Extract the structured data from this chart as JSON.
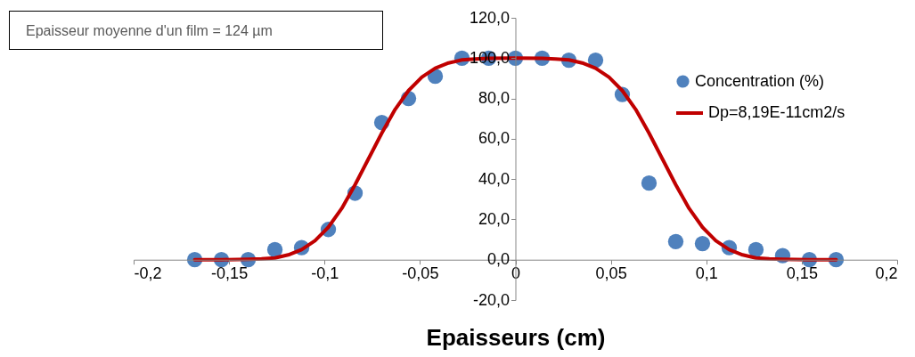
{
  "chart_data": {
    "type": "scatter",
    "xlabel": "Epaisseurs (cm)",
    "annotations": [
      "Epaisseur moyenne d'un film = 124 µm"
    ],
    "xlim": [
      -0.2,
      0.2
    ],
    "xticks": [
      {
        "value": -0.2,
        "label": "-0,2"
      },
      {
        "value": -0.15,
        "label": "-0,15"
      },
      {
        "value": -0.1,
        "label": "-0,1"
      },
      {
        "value": -0.05,
        "label": "-0,05"
      },
      0,
      {
        "value": 0.05,
        "label": "0,05"
      },
      {
        "value": 0.1,
        "label": "0,1"
      },
      {
        "value": 0.15,
        "label": "0,15"
      },
      {
        "value": 0.2,
        "label": "0,2"
      }
    ],
    "ylim": [
      -20,
      120
    ],
    "yticks": [
      {
        "value": -20,
        "label": "-20,0"
      },
      {
        "value": 0,
        "label": "0,0"
      },
      {
        "value": 20,
        "label": "20,0"
      },
      {
        "value": 40,
        "label": "40,0"
      },
      {
        "value": 60,
        "label": "60,0"
      },
      {
        "value": 80,
        "label": "80,0"
      },
      {
        "value": 100,
        "label": "100,0"
      },
      {
        "value": 120,
        "label": "120,0"
      }
    ],
    "grid": false,
    "legend": "right",
    "marker": "circle",
    "x": [
      -0.168,
      -0.154,
      -0.14,
      -0.126,
      -0.112,
      -0.098,
      -0.084,
      -0.07,
      -0.056,
      -0.042,
      -0.028,
      -0.014,
      0,
      0.014,
      0.028,
      0.042,
      0.056,
      0.07,
      0.084,
      0.098,
      0.112,
      0.126,
      0.14,
      0.154,
      0.168
    ],
    "series": [
      {
        "name": "Concentration (%)",
        "color": "#4f81bd",
        "values": [
          0,
          0,
          0,
          5,
          6,
          15,
          33,
          68,
          80,
          91,
          100,
          100,
          100,
          100,
          99,
          99,
          82,
          38,
          9,
          8,
          6,
          5,
          2,
          0,
          0
        ]
      },
      {
        "name": "Dp=8,19E-11cm2/s",
        "type": "line",
        "color": "#c00000",
        "line_style": "solid",
        "marker": "none",
        "x": [
          -0.168,
          -0.154,
          -0.14,
          -0.133,
          -0.126,
          -0.119,
          -0.112,
          -0.105,
          -0.098,
          -0.091,
          -0.084,
          -0.077,
          -0.07,
          -0.063,
          -0.056,
          -0.049,
          -0.042,
          -0.035,
          -0.028,
          -0.021,
          -0.014,
          0,
          0.014,
          0.021,
          0.028,
          0.035,
          0.042,
          0.049,
          0.056,
          0.063,
          0.07,
          0.077,
          0.084,
          0.091,
          0.098,
          0.105,
          0.112,
          0.119,
          0.126,
          0.133,
          0.14,
          0.154,
          0.168
        ],
        "values": [
          0,
          0,
          0.2,
          0.4,
          0.9,
          2.4,
          5,
          9.4,
          16.1,
          25.4,
          37.2,
          50,
          62.8,
          74.6,
          83.9,
          90.6,
          95,
          97.6,
          99.1,
          99.6,
          99.9,
          100,
          99.9,
          99.6,
          99.1,
          97.6,
          95,
          90.6,
          83.9,
          74.6,
          62.8,
          50,
          37.2,
          25.4,
          16.1,
          9.4,
          5,
          2.4,
          0.9,
          0.4,
          0.2,
          0,
          0
        ]
      }
    ]
  }
}
